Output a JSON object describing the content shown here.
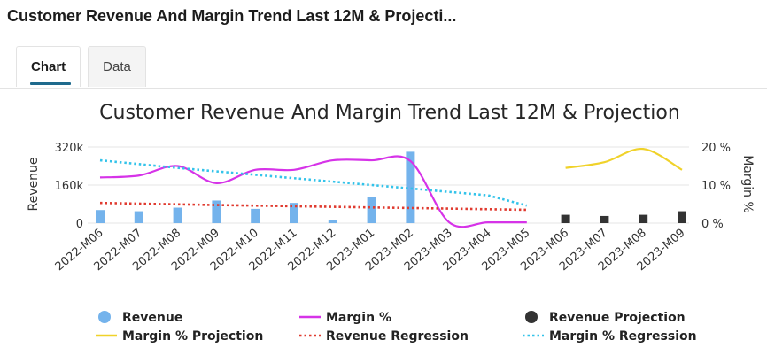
{
  "header": {
    "title": "Customer Revenue And Margin Trend Last 12M & Projecti..."
  },
  "tabs": [
    {
      "label": "Chart",
      "active": true
    },
    {
      "label": "Data",
      "active": false
    }
  ],
  "chart_data": {
    "type": "bar",
    "title": "Customer Revenue And Margin Trend Last 12M & Projection",
    "ylabel": "Revenue",
    "y2label": "Margin %",
    "ylim": [
      0,
      320000
    ],
    "y2lim": [
      0,
      20
    ],
    "yticks": [
      "0",
      "160k",
      "320k"
    ],
    "y2ticks": [
      "0 %",
      "10 %",
      "20 %"
    ],
    "categories": [
      "2022-M06",
      "2022-M07",
      "2022-M08",
      "2022-M09",
      "2022-M10",
      "2022-M11",
      "2022-M12",
      "2023-M01",
      "2023-M02",
      "2023-M03",
      "2023-M04",
      "2023-M05",
      "2023-M06",
      "2023-M07",
      "2023-M08",
      "2023-M09"
    ],
    "grid": true,
    "legend_position": "bottom",
    "series": [
      {
        "name": "Revenue",
        "kind": "bar",
        "color": "#74b3ec",
        "values": [
          55000,
          50000,
          65000,
          95000,
          60000,
          85000,
          12000,
          110000,
          300000,
          null,
          null,
          null,
          null,
          null,
          null,
          null
        ]
      },
      {
        "name": "Margin %",
        "kind": "line",
        "color": "#d633e8",
        "values": [
          12,
          12.5,
          15,
          10.5,
          14,
          14,
          16.5,
          16.5,
          16.3,
          0.2,
          0.2,
          0.2,
          null,
          null,
          null,
          null
        ]
      },
      {
        "name": "Revenue Projection",
        "kind": "bar",
        "color": "#333333",
        "values": [
          null,
          null,
          null,
          null,
          null,
          null,
          null,
          null,
          null,
          null,
          null,
          null,
          35000,
          30000,
          35000,
          50000
        ]
      },
      {
        "name": "Margin % Projection",
        "kind": "line",
        "color": "#f0d22a",
        "values": [
          null,
          null,
          null,
          null,
          null,
          null,
          null,
          null,
          null,
          null,
          null,
          null,
          14.5,
          16,
          19.5,
          14
        ]
      },
      {
        "name": "Revenue Regression",
        "kind": "dotted-line",
        "color": "#e03a2f",
        "values": [
          85000,
          82000,
          79000,
          76000,
          73500,
          71000,
          68500,
          66000,
          63500,
          61000,
          58500,
          56000,
          null,
          null,
          null,
          null
        ]
      },
      {
        "name": "Margin % Regression",
        "kind": "dotted-line",
        "color": "#33c3ea",
        "axis": "y2",
        "values": [
          16.5,
          15.5,
          14.5,
          13.6,
          12.7,
          11.8,
          10.9,
          10.0,
          9.1,
          8.2,
          7.3,
          4.6,
          null,
          null,
          null,
          null
        ]
      }
    ]
  }
}
